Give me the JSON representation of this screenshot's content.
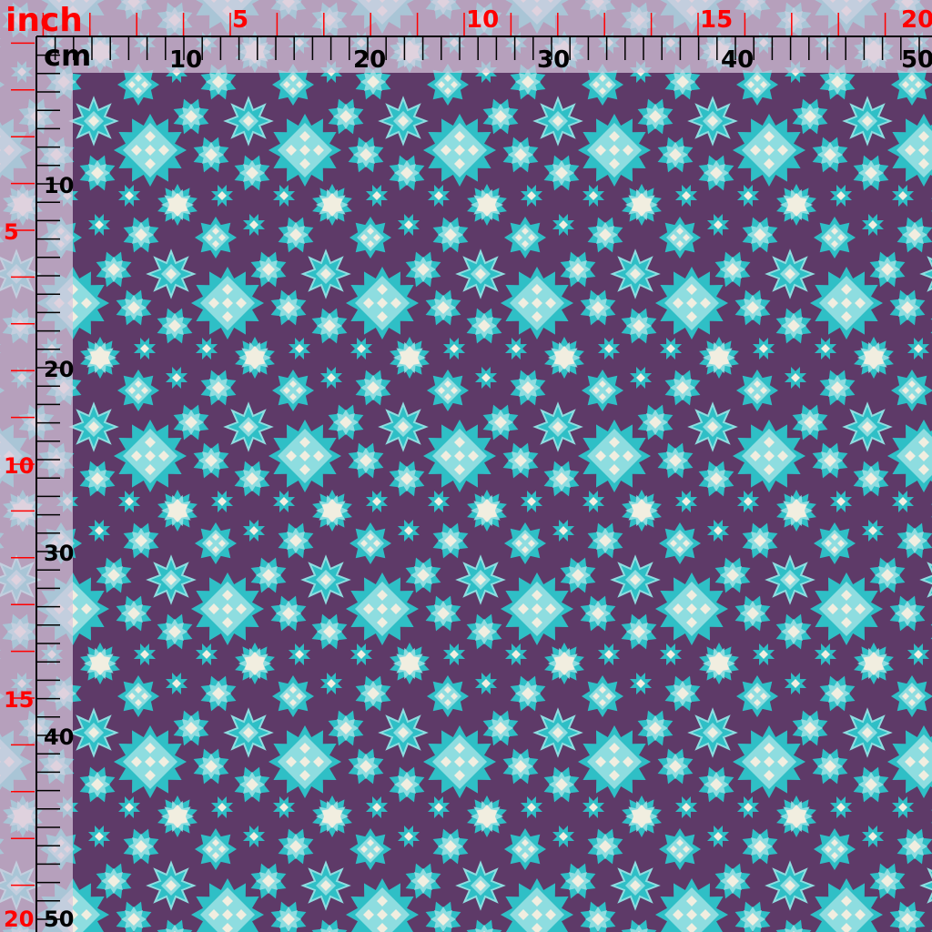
{
  "rulers": {
    "inch_unit": "inch",
    "cm_unit": "cm",
    "top_inch_labels": [
      "5",
      "10",
      "15",
      "20"
    ],
    "top_cm_labels": [
      "10",
      "20",
      "30",
      "40",
      "50"
    ],
    "left_inch_labels": [
      "5",
      "10",
      "15",
      "20"
    ],
    "left_cm_labels": [
      "10",
      "20",
      "30",
      "40",
      "50"
    ],
    "inch_color": "#ff0000",
    "cm_color": "#000000"
  },
  "pattern": {
    "background_color": "#5e3a68",
    "teal_color": "#2fbfc6",
    "light_teal_color": "#8edde0",
    "cream_color": "#f1eee0",
    "ruler_overlay_color": "#d8c8dc"
  }
}
